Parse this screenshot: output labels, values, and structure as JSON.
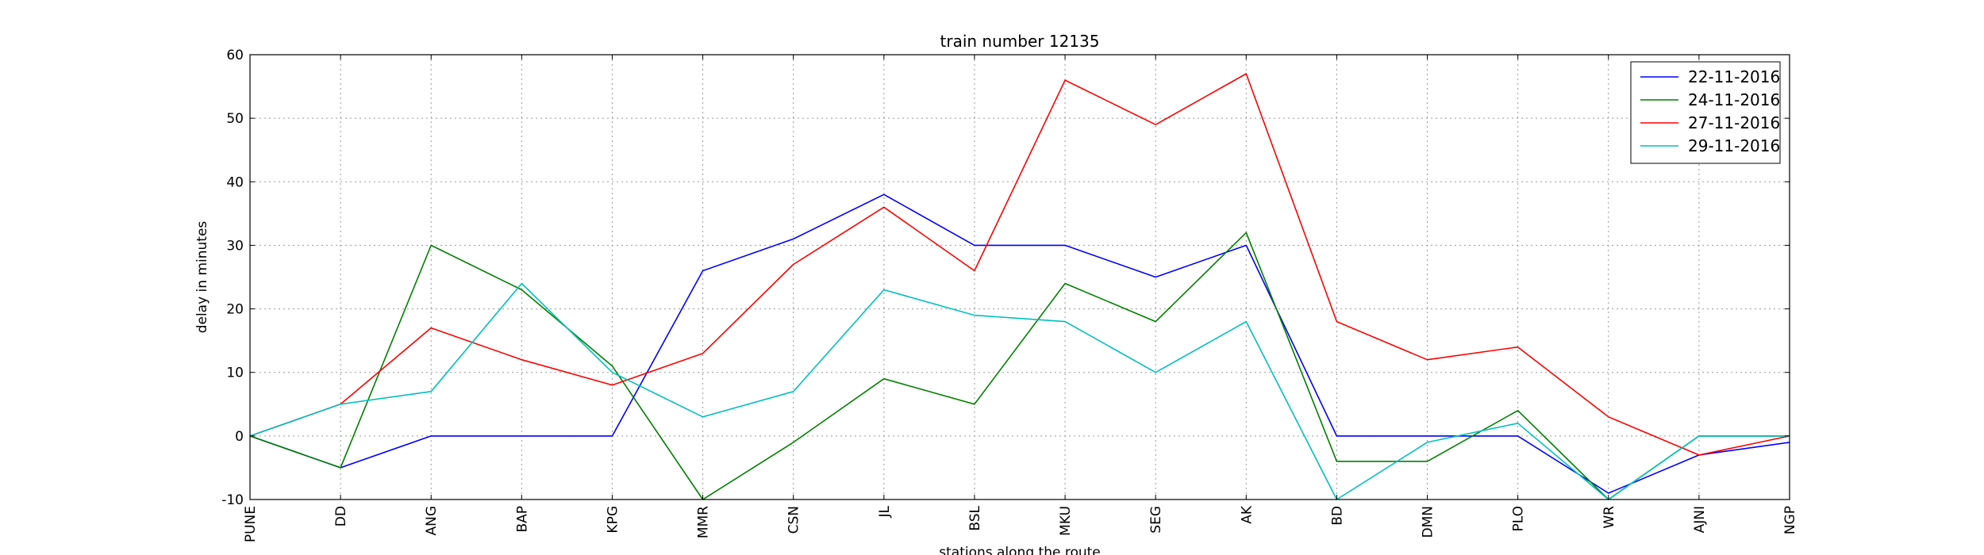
{
  "chart_data": {
    "type": "line",
    "title": "train number 12135",
    "xlabel": "stations along the route",
    "ylabel": "delay in minutes",
    "categories": [
      "PUNE",
      "DD",
      "ANG",
      "BAP",
      "KPG",
      "MMR",
      "CSN",
      "JL",
      "BSL",
      "MKU",
      "SEG",
      "AK",
      "BD",
      "DMN",
      "PLO",
      "WR",
      "AJNI",
      "NGP"
    ],
    "ylim": [
      -10,
      60
    ],
    "yticks": [
      -10,
      0,
      10,
      20,
      30,
      40,
      50,
      60
    ],
    "grid": true,
    "legend_position": "top-right",
    "series": [
      {
        "name": "22-11-2016",
        "color": "#0000ff",
        "values": [
          0,
          -5,
          0,
          0,
          0,
          26,
          31,
          38,
          30,
          30,
          25,
          30,
          0,
          0,
          0,
          -9,
          -3,
          -1
        ]
      },
      {
        "name": "24-11-2016",
        "color": "#008000",
        "values": [
          0,
          -5,
          30,
          23,
          11,
          -10,
          -1,
          9,
          5,
          24,
          18,
          32,
          -4,
          -4,
          4,
          -10,
          0,
          0
        ]
      },
      {
        "name": "27-11-2016",
        "color": "#ff0000",
        "values": [
          0,
          5,
          17,
          12,
          8,
          13,
          27,
          36,
          26,
          56,
          49,
          57,
          18,
          12,
          14,
          3,
          -3,
          0
        ]
      },
      {
        "name": "29-11-2016",
        "color": "#00bfbf",
        "values": [
          0,
          5,
          7,
          24,
          10,
          3,
          7,
          23,
          19,
          18,
          10,
          18,
          -10,
          -1,
          2,
          -10,
          0,
          0
        ]
      }
    ]
  }
}
